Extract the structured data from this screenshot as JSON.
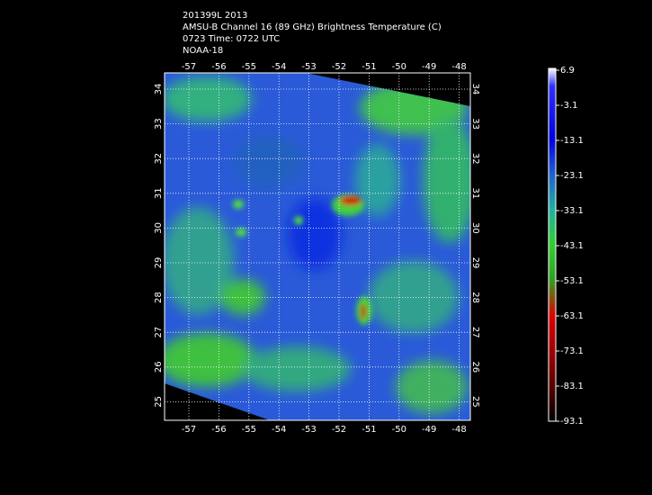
{
  "header": {
    "lines": [
      "201399L 2013",
      "AMSU-B Channel 16 (89 GHz) Brightness Temperature (C)",
      "0723 Time: 0722 UTC",
      "NOAA-18"
    ]
  },
  "map": {
    "lon_ticks": [
      -57,
      -56,
      -55,
      -54,
      -53,
      -52,
      -51,
      -50,
      -49,
      -48
    ],
    "lat_ticks": [
      34,
      33,
      32,
      31,
      30,
      29,
      28,
      27,
      26,
      25
    ]
  },
  "colorbar": {
    "labels": [
      6.9,
      -3.1,
      -13.1,
      -23.1,
      -33.1,
      -43.1,
      -53.1,
      -63.1,
      -73.1,
      -83.1,
      -93.1
    ]
  }
}
